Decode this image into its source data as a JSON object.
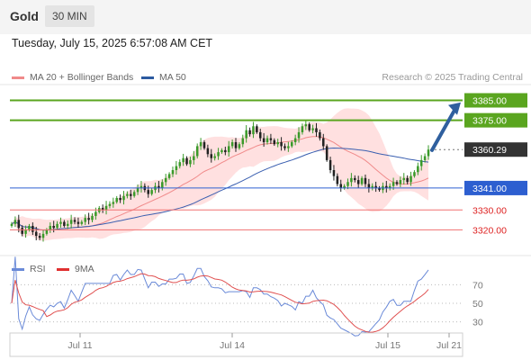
{
  "header": {
    "symbol": "Gold",
    "timeframe": "30 MIN",
    "datetime": "Tuesday, July 15, 2025 6:57:08 AM CET"
  },
  "legend": {
    "items": [
      {
        "label": "MA 20 + Bollinger Bands",
        "color": "#f08a8a"
      },
      {
        "label": "MA 50",
        "color": "#2c5aa0"
      }
    ],
    "credit": "Research © 2025 Trading Central"
  },
  "colors": {
    "up": "#3a9a2a",
    "down": "#222222",
    "ma20": "#f08a8a",
    "bands": "#ffd6d6",
    "ma50": "#3a5fb0",
    "resistance": "#5aa51f",
    "pivot": "#2d5fd0",
    "support": "#f07070",
    "current": "#333333",
    "arrow": "#2f5f9e",
    "rsi": "#6a8ad8",
    "rsi_ma": "#e05050"
  },
  "chart_data": [
    {
      "type": "candlestick",
      "ylim": [
        3308,
        3392
      ],
      "x_ticks": [
        "Jul 11",
        "Jul 14",
        "Jul 15",
        "Jul 21"
      ],
      "levels": [
        {
          "value": 3385.0,
          "label": "3385.00",
          "kind": "resistance"
        },
        {
          "value": 3375.0,
          "label": "3375.00",
          "kind": "resistance"
        },
        {
          "value": 3360.29,
          "label": "3360.29",
          "kind": "current"
        },
        {
          "value": 3341.0,
          "label": "3341.00",
          "kind": "pivot"
        },
        {
          "value": 3330.0,
          "label": "3330.00",
          "kind": "support"
        },
        {
          "value": 3320.0,
          "label": "3320.00",
          "kind": "support"
        }
      ],
      "projection": {
        "from": 3360,
        "to": 3384
      },
      "close": [
        3323,
        3325,
        3321,
        3318,
        3320,
        3322,
        3319,
        3317,
        3316,
        3318,
        3320,
        3322,
        3321,
        3323,
        3324,
        3322,
        3323,
        3325,
        3324,
        3323,
        3324,
        3326,
        3325,
        3327,
        3329,
        3331,
        3330,
        3332,
        3333,
        3334,
        3336,
        3335,
        3337,
        3338,
        3337,
        3339,
        3341,
        3342,
        3340,
        3338,
        3340,
        3342,
        3341,
        3344,
        3346,
        3348,
        3350,
        3352,
        3354,
        3356,
        3353,
        3355,
        3357,
        3362,
        3364,
        3361,
        3358,
        3356,
        3357,
        3359,
        3360,
        3359,
        3362,
        3364,
        3361,
        3363,
        3366,
        3370,
        3368,
        3372,
        3369,
        3366,
        3364,
        3366,
        3365,
        3363,
        3364,
        3362,
        3361,
        3362,
        3364,
        3366,
        3369,
        3372,
        3373,
        3370,
        3371,
        3369,
        3366,
        3362,
        3355,
        3350,
        3347,
        3343,
        3341,
        3342,
        3344,
        3346,
        3345,
        3343,
        3346,
        3343,
        3341,
        3342,
        3341,
        3340,
        3342,
        3341,
        3342,
        3344,
        3343,
        3345,
        3346,
        3344,
        3347,
        3349,
        3352,
        3355,
        3357,
        3360.29
      ],
      "series": [
        {
          "name": "MA 20 + Bollinger Bands"
        },
        {
          "name": "MA 50"
        }
      ]
    },
    {
      "type": "line",
      "ylim": [
        20,
        80
      ],
      "y_ticks": [
        70,
        50,
        30
      ],
      "series": [
        {
          "name": "RSI"
        },
        {
          "name": "9MA"
        }
      ]
    }
  ]
}
